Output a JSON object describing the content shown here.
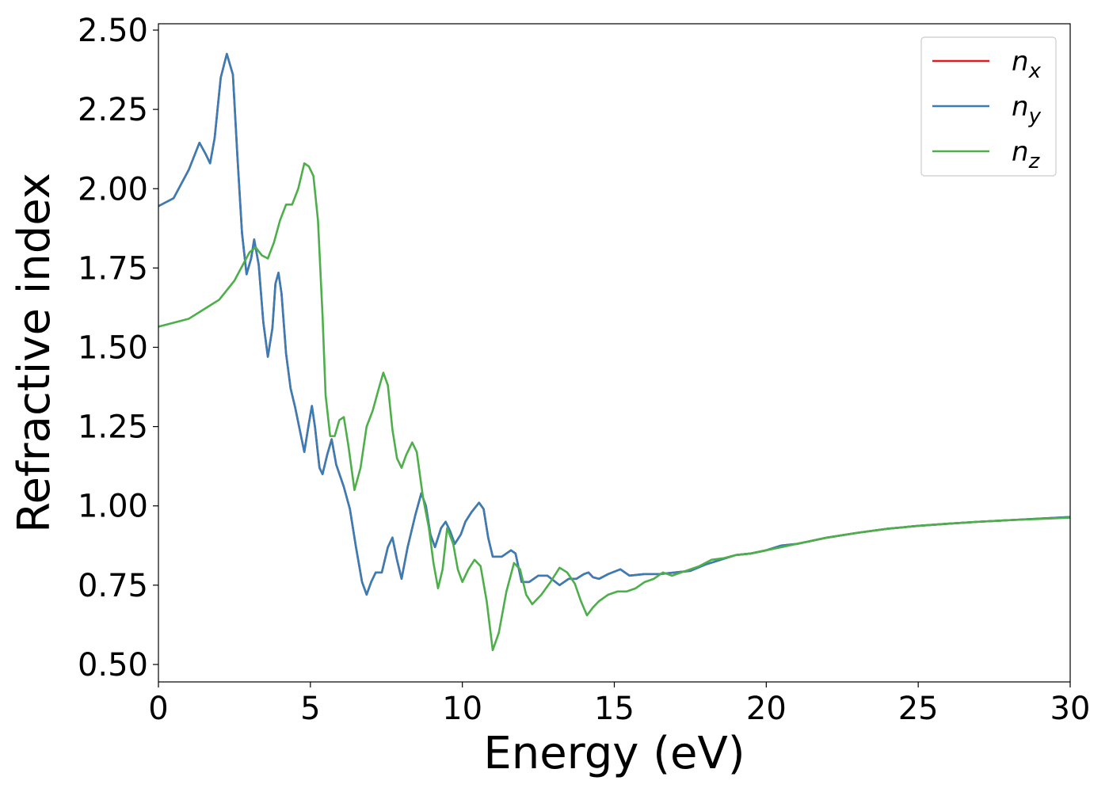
{
  "chart_data": {
    "type": "line",
    "title": "",
    "xlabel": "Energy (eV)",
    "ylabel": "Refractive index",
    "xlim": [
      0,
      30
    ],
    "ylim": [
      0.445,
      2.52
    ],
    "xticks": [
      0,
      5,
      10,
      15,
      20,
      25,
      30
    ],
    "yticks": [
      0.5,
      0.75,
      1.0,
      1.25,
      1.5,
      1.75,
      2.0,
      2.25,
      2.5
    ],
    "xtick_labels": [
      "0",
      "5",
      "10",
      "15",
      "20",
      "25",
      "30"
    ],
    "ytick_labels": [
      "0.50",
      "0.75",
      "1.00",
      "1.25",
      "1.50",
      "1.75",
      "2.00",
      "2.25",
      "2.50"
    ],
    "grid": false,
    "legend_position": "top-right",
    "legend": [
      {
        "base": "n",
        "sub": "x",
        "color": "#e41a1c"
      },
      {
        "base": "n",
        "sub": "y",
        "color": "#377eb8"
      },
      {
        "base": "n",
        "sub": "z",
        "color": "#4daf4a"
      }
    ],
    "series": [
      {
        "name": "n_x",
        "color": "#e41a1c",
        "points": [
          [
            0,
            1.945
          ],
          [
            0.5,
            1.97
          ],
          [
            1.0,
            2.06
          ],
          [
            1.35,
            2.145
          ],
          [
            1.55,
            2.11
          ],
          [
            1.7,
            2.08
          ],
          [
            1.85,
            2.16
          ],
          [
            2.05,
            2.35
          ],
          [
            2.25,
            2.425
          ],
          [
            2.45,
            2.36
          ],
          [
            2.6,
            2.1
          ],
          [
            2.75,
            1.86
          ],
          [
            2.9,
            1.73
          ],
          [
            3.05,
            1.78
          ],
          [
            3.15,
            1.84
          ],
          [
            3.3,
            1.76
          ],
          [
            3.45,
            1.58
          ],
          [
            3.6,
            1.47
          ],
          [
            3.75,
            1.56
          ],
          [
            3.85,
            1.7
          ],
          [
            3.95,
            1.735
          ],
          [
            4.05,
            1.67
          ],
          [
            4.2,
            1.48
          ],
          [
            4.35,
            1.37
          ],
          [
            4.5,
            1.31
          ],
          [
            4.65,
            1.24
          ],
          [
            4.8,
            1.17
          ],
          [
            4.95,
            1.26
          ],
          [
            5.05,
            1.315
          ],
          [
            5.15,
            1.25
          ],
          [
            5.3,
            1.12
          ],
          [
            5.4,
            1.1
          ],
          [
            5.55,
            1.16
          ],
          [
            5.7,
            1.21
          ],
          [
            5.85,
            1.13
          ],
          [
            6.1,
            1.06
          ],
          [
            6.3,
            0.99
          ],
          [
            6.5,
            0.87
          ],
          [
            6.7,
            0.76
          ],
          [
            6.85,
            0.72
          ],
          [
            7.0,
            0.76
          ],
          [
            7.15,
            0.79
          ],
          [
            7.35,
            0.79
          ],
          [
            7.55,
            0.87
          ],
          [
            7.7,
            0.9
          ],
          [
            7.85,
            0.83
          ],
          [
            8.0,
            0.77
          ],
          [
            8.2,
            0.87
          ],
          [
            8.45,
            0.97
          ],
          [
            8.65,
            1.04
          ],
          [
            8.8,
            1.0
          ],
          [
            8.95,
            0.91
          ],
          [
            9.1,
            0.87
          ],
          [
            9.3,
            0.93
          ],
          [
            9.45,
            0.95
          ],
          [
            9.6,
            0.92
          ],
          [
            9.75,
            0.88
          ],
          [
            9.95,
            0.91
          ],
          [
            10.1,
            0.95
          ],
          [
            10.3,
            0.98
          ],
          [
            10.55,
            1.01
          ],
          [
            10.7,
            0.99
          ],
          [
            10.85,
            0.9
          ],
          [
            11.0,
            0.84
          ],
          [
            11.3,
            0.84
          ],
          [
            11.6,
            0.86
          ],
          [
            11.75,
            0.85
          ],
          [
            11.95,
            0.76
          ],
          [
            12.2,
            0.76
          ],
          [
            12.5,
            0.78
          ],
          [
            12.8,
            0.78
          ],
          [
            13.2,
            0.75
          ],
          [
            13.5,
            0.77
          ],
          [
            13.75,
            0.77
          ],
          [
            14.0,
            0.785
          ],
          [
            14.15,
            0.79
          ],
          [
            14.3,
            0.775
          ],
          [
            14.5,
            0.77
          ],
          [
            14.8,
            0.785
          ],
          [
            15.2,
            0.8
          ],
          [
            15.5,
            0.78
          ],
          [
            16.0,
            0.785
          ],
          [
            16.5,
            0.785
          ],
          [
            17.0,
            0.79
          ],
          [
            17.5,
            0.795
          ],
          [
            18.0,
            0.815
          ],
          [
            18.5,
            0.83
          ],
          [
            19.0,
            0.845
          ],
          [
            19.5,
            0.85
          ],
          [
            20.0,
            0.86
          ],
          [
            20.5,
            0.875
          ],
          [
            21.0,
            0.88
          ],
          [
            21.5,
            0.89
          ],
          [
            22.0,
            0.9
          ],
          [
            23.0,
            0.915
          ],
          [
            24.0,
            0.928
          ],
          [
            25.0,
            0.937
          ],
          [
            26.0,
            0.944
          ],
          [
            27.0,
            0.95
          ],
          [
            28.0,
            0.955
          ],
          [
            29.0,
            0.96
          ],
          [
            30.0,
            0.965
          ]
        ]
      },
      {
        "name": "n_y",
        "color": "#377eb8",
        "points": [
          [
            0,
            1.945
          ],
          [
            0.5,
            1.97
          ],
          [
            1.0,
            2.06
          ],
          [
            1.35,
            2.145
          ],
          [
            1.55,
            2.11
          ],
          [
            1.7,
            2.08
          ],
          [
            1.85,
            2.16
          ],
          [
            2.05,
            2.35
          ],
          [
            2.25,
            2.425
          ],
          [
            2.45,
            2.36
          ],
          [
            2.6,
            2.1
          ],
          [
            2.75,
            1.86
          ],
          [
            2.9,
            1.73
          ],
          [
            3.05,
            1.78
          ],
          [
            3.15,
            1.84
          ],
          [
            3.3,
            1.76
          ],
          [
            3.45,
            1.58
          ],
          [
            3.6,
            1.47
          ],
          [
            3.75,
            1.56
          ],
          [
            3.85,
            1.7
          ],
          [
            3.95,
            1.735
          ],
          [
            4.05,
            1.67
          ],
          [
            4.2,
            1.48
          ],
          [
            4.35,
            1.37
          ],
          [
            4.5,
            1.31
          ],
          [
            4.65,
            1.24
          ],
          [
            4.8,
            1.17
          ],
          [
            4.95,
            1.26
          ],
          [
            5.05,
            1.315
          ],
          [
            5.15,
            1.25
          ],
          [
            5.3,
            1.12
          ],
          [
            5.4,
            1.1
          ],
          [
            5.55,
            1.16
          ],
          [
            5.7,
            1.21
          ],
          [
            5.85,
            1.13
          ],
          [
            6.1,
            1.06
          ],
          [
            6.3,
            0.99
          ],
          [
            6.5,
            0.87
          ],
          [
            6.7,
            0.76
          ],
          [
            6.85,
            0.72
          ],
          [
            7.0,
            0.76
          ],
          [
            7.15,
            0.79
          ],
          [
            7.35,
            0.79
          ],
          [
            7.55,
            0.87
          ],
          [
            7.7,
            0.9
          ],
          [
            7.85,
            0.83
          ],
          [
            8.0,
            0.77
          ],
          [
            8.2,
            0.87
          ],
          [
            8.45,
            0.97
          ],
          [
            8.65,
            1.04
          ],
          [
            8.8,
            1.0
          ],
          [
            8.95,
            0.91
          ],
          [
            9.1,
            0.87
          ],
          [
            9.3,
            0.93
          ],
          [
            9.45,
            0.95
          ],
          [
            9.6,
            0.92
          ],
          [
            9.75,
            0.88
          ],
          [
            9.95,
            0.91
          ],
          [
            10.1,
            0.95
          ],
          [
            10.3,
            0.98
          ],
          [
            10.55,
            1.01
          ],
          [
            10.7,
            0.99
          ],
          [
            10.85,
            0.9
          ],
          [
            11.0,
            0.84
          ],
          [
            11.3,
            0.84
          ],
          [
            11.6,
            0.86
          ],
          [
            11.75,
            0.85
          ],
          [
            11.95,
            0.76
          ],
          [
            12.2,
            0.76
          ],
          [
            12.5,
            0.78
          ],
          [
            12.8,
            0.78
          ],
          [
            13.2,
            0.75
          ],
          [
            13.5,
            0.77
          ],
          [
            13.75,
            0.77
          ],
          [
            14.0,
            0.785
          ],
          [
            14.15,
            0.79
          ],
          [
            14.3,
            0.775
          ],
          [
            14.5,
            0.77
          ],
          [
            14.8,
            0.785
          ],
          [
            15.2,
            0.8
          ],
          [
            15.5,
            0.78
          ],
          [
            16.0,
            0.785
          ],
          [
            16.5,
            0.785
          ],
          [
            17.0,
            0.79
          ],
          [
            17.5,
            0.795
          ],
          [
            18.0,
            0.815
          ],
          [
            18.5,
            0.83
          ],
          [
            19.0,
            0.845
          ],
          [
            19.5,
            0.85
          ],
          [
            20.0,
            0.86
          ],
          [
            20.5,
            0.875
          ],
          [
            21.0,
            0.88
          ],
          [
            21.5,
            0.89
          ],
          [
            22.0,
            0.9
          ],
          [
            23.0,
            0.915
          ],
          [
            24.0,
            0.928
          ],
          [
            25.0,
            0.937
          ],
          [
            26.0,
            0.944
          ],
          [
            27.0,
            0.95
          ],
          [
            28.0,
            0.955
          ],
          [
            29.0,
            0.96
          ],
          [
            30.0,
            0.965
          ]
        ]
      },
      {
        "name": "n_z",
        "color": "#4daf4a",
        "points": [
          [
            0,
            1.565
          ],
          [
            1.0,
            1.59
          ],
          [
            2.0,
            1.65
          ],
          [
            2.5,
            1.71
          ],
          [
            3.0,
            1.8
          ],
          [
            3.2,
            1.815
          ],
          [
            3.4,
            1.79
          ],
          [
            3.6,
            1.78
          ],
          [
            3.8,
            1.83
          ],
          [
            4.0,
            1.9
          ],
          [
            4.2,
            1.95
          ],
          [
            4.4,
            1.95
          ],
          [
            4.6,
            2.0
          ],
          [
            4.8,
            2.08
          ],
          [
            4.95,
            2.07
          ],
          [
            5.1,
            2.04
          ],
          [
            5.25,
            1.9
          ],
          [
            5.4,
            1.6
          ],
          [
            5.5,
            1.35
          ],
          [
            5.65,
            1.22
          ],
          [
            5.8,
            1.22
          ],
          [
            5.95,
            1.27
          ],
          [
            6.1,
            1.28
          ],
          [
            6.25,
            1.19
          ],
          [
            6.45,
            1.05
          ],
          [
            6.65,
            1.12
          ],
          [
            6.85,
            1.25
          ],
          [
            7.05,
            1.3
          ],
          [
            7.25,
            1.37
          ],
          [
            7.4,
            1.42
          ],
          [
            7.55,
            1.38
          ],
          [
            7.7,
            1.24
          ],
          [
            7.85,
            1.15
          ],
          [
            8.0,
            1.12
          ],
          [
            8.15,
            1.16
          ],
          [
            8.35,
            1.2
          ],
          [
            8.5,
            1.17
          ],
          [
            8.7,
            1.03
          ],
          [
            8.9,
            0.93
          ],
          [
            9.05,
            0.82
          ],
          [
            9.2,
            0.74
          ],
          [
            9.35,
            0.8
          ],
          [
            9.5,
            0.93
          ],
          [
            9.7,
            0.88
          ],
          [
            9.85,
            0.8
          ],
          [
            10.0,
            0.76
          ],
          [
            10.2,
            0.8
          ],
          [
            10.4,
            0.83
          ],
          [
            10.6,
            0.81
          ],
          [
            10.8,
            0.7
          ],
          [
            11.0,
            0.545
          ],
          [
            11.2,
            0.6
          ],
          [
            11.45,
            0.73
          ],
          [
            11.7,
            0.82
          ],
          [
            11.9,
            0.8
          ],
          [
            12.1,
            0.72
          ],
          [
            12.3,
            0.69
          ],
          [
            12.6,
            0.72
          ],
          [
            12.9,
            0.76
          ],
          [
            13.2,
            0.805
          ],
          [
            13.45,
            0.79
          ],
          [
            13.7,
            0.755
          ],
          [
            13.9,
            0.7
          ],
          [
            14.1,
            0.655
          ],
          [
            14.3,
            0.68
          ],
          [
            14.5,
            0.7
          ],
          [
            14.8,
            0.72
          ],
          [
            15.1,
            0.73
          ],
          [
            15.4,
            0.73
          ],
          [
            15.7,
            0.74
          ],
          [
            16.0,
            0.76
          ],
          [
            16.3,
            0.77
          ],
          [
            16.6,
            0.79
          ],
          [
            16.9,
            0.78
          ],
          [
            17.2,
            0.79
          ],
          [
            17.5,
            0.8
          ],
          [
            17.8,
            0.81
          ],
          [
            18.2,
            0.83
          ],
          [
            18.6,
            0.835
          ],
          [
            19.0,
            0.845
          ],
          [
            19.5,
            0.85
          ],
          [
            20.0,
            0.86
          ],
          [
            20.5,
            0.87
          ],
          [
            21.0,
            0.88
          ],
          [
            21.5,
            0.89
          ],
          [
            22.0,
            0.9
          ],
          [
            23.0,
            0.915
          ],
          [
            24.0,
            0.928
          ],
          [
            25.0,
            0.937
          ],
          [
            26.0,
            0.944
          ],
          [
            27.0,
            0.95
          ],
          [
            28.0,
            0.955
          ],
          [
            29.0,
            0.959
          ],
          [
            30.0,
            0.963
          ]
        ]
      }
    ]
  }
}
